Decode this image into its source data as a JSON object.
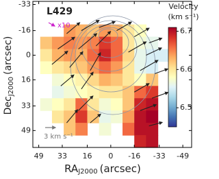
{
  "chart_data": {
    "type": "vector-map",
    "title": "L429",
    "scale_label": "x10",
    "xlabel": "RA",
    "xlabel_sub": "J2000",
    "xlabel_unit": "(arcsec)",
    "ylabel": "Dec",
    "ylabel_sub": "J2000",
    "ylabel_unit": "(arcsec)",
    "xlim": [
      53,
      -55
    ],
    "xticks": [
      49,
      33,
      16,
      0,
      -16,
      -33,
      -49
    ],
    "ylim": [
      -35,
      60
    ],
    "yticks": [
      -33,
      -16,
      0,
      16,
      33,
      49
    ],
    "colorbar_label": "Velocity",
    "colorbar_unit": "(km s⁻¹)",
    "clim": [
      6.45,
      6.71
    ],
    "cticks": [
      6.5,
      6.6,
      6.7
    ],
    "colormap": [
      "#313695",
      "#4575b4",
      "#74add1",
      "#abd9e9",
      "#e0f3f8",
      "#ffffbf",
      "#fee090",
      "#fdae61",
      "#f46d43",
      "#d73027",
      "#a50026"
    ],
    "grid_x": [
      44,
      36,
      28,
      20,
      12,
      4,
      -4,
      -12,
      -20,
      -28,
      -36
    ],
    "grid_y": [
      -16,
      -8,
      0,
      8,
      16,
      24,
      32,
      40,
      48,
      56
    ],
    "cell_size": 8,
    "values": [
      [
        null,
        null,
        6.64,
        6.63,
        6.62,
        6.64,
        6.63,
        6.6,
        6.58,
        null,
        null
      ],
      [
        6.62,
        6.64,
        6.65,
        6.64,
        6.65,
        6.68,
        6.66,
        6.6,
        6.57,
        6.56,
        null
      ],
      [
        6.6,
        6.63,
        6.64,
        6.63,
        6.66,
        6.69,
        6.66,
        6.61,
        6.56,
        6.55,
        6.55
      ],
      [
        6.58,
        6.6,
        6.61,
        6.62,
        6.64,
        6.66,
        6.64,
        6.6,
        6.56,
        6.55,
        null
      ],
      [
        null,
        6.57,
        6.58,
        6.59,
        6.61,
        6.63,
        6.62,
        6.6,
        6.58,
        6.62,
        null
      ],
      [
        null,
        6.56,
        6.57,
        6.58,
        6.59,
        6.6,
        6.6,
        6.62,
        6.66,
        6.68,
        null
      ],
      [
        6.57,
        6.58,
        6.6,
        6.66,
        6.6,
        6.57,
        6.58,
        6.62,
        6.69,
        6.7,
        null
      ],
      [
        null,
        6.6,
        6.62,
        6.68,
        6.62,
        6.56,
        6.57,
        6.64,
        6.7,
        6.71,
        null
      ],
      [
        null,
        null,
        6.62,
        6.65,
        null,
        6.57,
        null,
        6.66,
        6.7,
        6.7,
        null
      ],
      [
        null,
        null,
        null,
        null,
        null,
        null,
        null,
        null,
        6.69,
        6.7,
        null
      ]
    ],
    "vectors": {
      "x": [
        30,
        20,
        8,
        -4,
        -16,
        -26,
        36,
        22,
        10,
        -12,
        -24,
        40,
        28,
        14,
        -20,
        -30,
        34,
        20,
        -16,
        -28,
        22,
        30,
        14,
        -20,
        -26
      ],
      "y": [
        -14,
        -16,
        -18,
        -16,
        -12,
        -8,
        -4,
        -4,
        -6,
        -2,
        0,
        6,
        8,
        10,
        10,
        12,
        20,
        22,
        24,
        28,
        36,
        44,
        44,
        36,
        46
      ],
      "angle": [
        40,
        30,
        20,
        30,
        30,
        20,
        35,
        40,
        45,
        30,
        25,
        40,
        50,
        60,
        30,
        20,
        40,
        55,
        30,
        20,
        45,
        50,
        40,
        20,
        15
      ],
      "length": [
        5,
        6,
        5,
        5,
        5,
        4,
        6,
        7,
        6,
        6,
        5,
        6,
        6,
        6,
        6,
        4,
        5,
        6,
        5,
        5,
        6,
        5,
        4,
        5,
        4
      ],
      "color": "#222222"
    },
    "reference_length": 3,
    "reference_label": "3 km s⁻¹",
    "reference_color": "#777777"
  }
}
